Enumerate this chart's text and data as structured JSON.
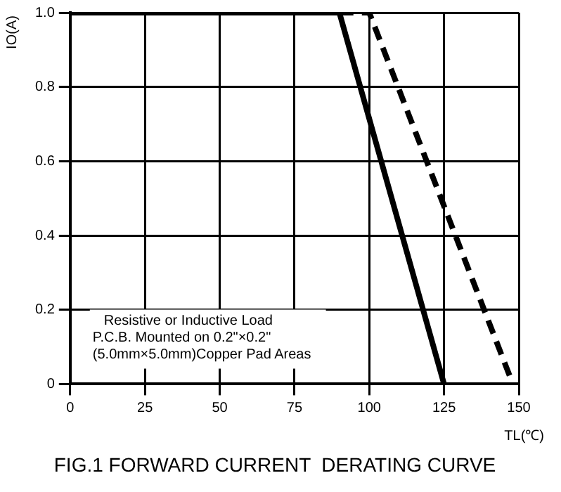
{
  "chart_data": {
    "type": "line",
    "title": "FIG.1 FORWARD CURRENT  DERATING CURVE",
    "xlabel": "TL(℃)",
    "ylabel": "IO(A)",
    "series": [
      {
        "color": "#000000",
        "x": [
          0,
          90,
          125
        ],
        "values": [
          1,
          1,
          0
        ],
        "line_style": "solid"
      },
      {
        "color": "#000000",
        "x": [
          90,
          100,
          148
        ],
        "values": [
          1,
          1,
          0
        ],
        "line_style": "dashed"
      }
    ],
    "xlim": [
      0,
      150
    ],
    "xticks": [
      0,
      25,
      50,
      75,
      100,
      125,
      150
    ],
    "ylim": [
      0,
      1
    ],
    "yticks": [
      0,
      0.2,
      0.4,
      0.6,
      0.8,
      {
        "value": 1,
        "label": "1.0"
      }
    ],
    "grid": true,
    "legend": false,
    "marker": "none",
    "annotations": [
      "Resistive or Inductive Load",
      "P.C.B. Mounted on 0.2\"×0.2\"",
      "(5.0mm×5.0mm)Copper Pad Areas"
    ]
  }
}
